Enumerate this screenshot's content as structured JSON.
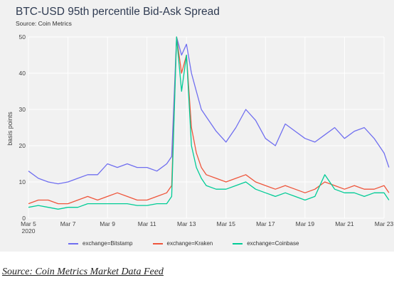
{
  "chart_data": {
    "type": "line",
    "title": "BTC-USD 95th percentile Bid-Ask Spread",
    "subtitle": "Source: Coin Metrics",
    "ylabel": "basis points",
    "xlabel": "",
    "ylim": [
      0,
      50
    ],
    "yticks": [
      "0",
      "10",
      "20",
      "30",
      "40",
      "50"
    ],
    "xticks": [
      {
        "date": "2020-03-05",
        "label": "Mar 5",
        "sublabel": "2020"
      },
      {
        "date": "2020-03-07",
        "label": "Mar 7"
      },
      {
        "date": "2020-03-09",
        "label": "Mar 9"
      },
      {
        "date": "2020-03-11",
        "label": "Mar 11"
      },
      {
        "date": "2020-03-13",
        "label": "Mar 13"
      },
      {
        "date": "2020-03-15",
        "label": "Mar 15"
      },
      {
        "date": "2020-03-17",
        "label": "Mar 17"
      },
      {
        "date": "2020-03-19",
        "label": "Mar 19"
      },
      {
        "date": "2020-03-21",
        "label": "Mar 21"
      },
      {
        "date": "2020-03-23",
        "label": "Mar 23"
      }
    ],
    "grid": true,
    "legend_position": "bottom",
    "series": [
      {
        "name": "exchange=Bitstamp",
        "color": "#6f6ef0",
        "points": [
          [
            "2020-03-05 00:00",
            13
          ],
          [
            "2020-03-05 12:00",
            11
          ],
          [
            "2020-03-06 00:00",
            10
          ],
          [
            "2020-03-06 12:00",
            9.5
          ],
          [
            "2020-03-07 00:00",
            10
          ],
          [
            "2020-03-07 12:00",
            11
          ],
          [
            "2020-03-08 00:00",
            12
          ],
          [
            "2020-03-08 12:00",
            12
          ],
          [
            "2020-03-09 00:00",
            15
          ],
          [
            "2020-03-09 12:00",
            14
          ],
          [
            "2020-03-10 00:00",
            15
          ],
          [
            "2020-03-10 12:00",
            14
          ],
          [
            "2020-03-11 00:00",
            14
          ],
          [
            "2020-03-11 12:00",
            13
          ],
          [
            "2020-03-12 00:00",
            15
          ],
          [
            "2020-03-12 06:00",
            17
          ],
          [
            "2020-03-12 12:00",
            50
          ],
          [
            "2020-03-12 18:00",
            45
          ],
          [
            "2020-03-13 00:00",
            48
          ],
          [
            "2020-03-13 06:00",
            40
          ],
          [
            "2020-03-13 12:00",
            35
          ],
          [
            "2020-03-13 18:00",
            30
          ],
          [
            "2020-03-14 00:00",
            28
          ],
          [
            "2020-03-14 12:00",
            24
          ],
          [
            "2020-03-15 00:00",
            21
          ],
          [
            "2020-03-15 12:00",
            25
          ],
          [
            "2020-03-16 00:00",
            30
          ],
          [
            "2020-03-16 12:00",
            27
          ],
          [
            "2020-03-17 00:00",
            22
          ],
          [
            "2020-03-17 12:00",
            20
          ],
          [
            "2020-03-18 00:00",
            26
          ],
          [
            "2020-03-18 12:00",
            24
          ],
          [
            "2020-03-19 00:00",
            22
          ],
          [
            "2020-03-19 12:00",
            21
          ],
          [
            "2020-03-20 00:00",
            23
          ],
          [
            "2020-03-20 12:00",
            25
          ],
          [
            "2020-03-21 00:00",
            22
          ],
          [
            "2020-03-21 12:00",
            24
          ],
          [
            "2020-03-22 00:00",
            25
          ],
          [
            "2020-03-22 12:00",
            22
          ],
          [
            "2020-03-23 00:00",
            18
          ],
          [
            "2020-03-23 06:00",
            14
          ]
        ]
      },
      {
        "name": "exchange=Kraken",
        "color": "#ef553b",
        "points": [
          [
            "2020-03-05 00:00",
            4
          ],
          [
            "2020-03-05 12:00",
            5
          ],
          [
            "2020-03-06 00:00",
            5
          ],
          [
            "2020-03-06 12:00",
            4
          ],
          [
            "2020-03-07 00:00",
            4
          ],
          [
            "2020-03-07 12:00",
            5
          ],
          [
            "2020-03-08 00:00",
            6
          ],
          [
            "2020-03-08 12:00",
            5
          ],
          [
            "2020-03-09 00:00",
            6
          ],
          [
            "2020-03-09 12:00",
            7
          ],
          [
            "2020-03-10 00:00",
            6
          ],
          [
            "2020-03-10 12:00",
            5
          ],
          [
            "2020-03-11 00:00",
            5
          ],
          [
            "2020-03-11 12:00",
            6
          ],
          [
            "2020-03-12 00:00",
            7
          ],
          [
            "2020-03-12 06:00",
            9
          ],
          [
            "2020-03-12 12:00",
            50
          ],
          [
            "2020-03-12 18:00",
            40
          ],
          [
            "2020-03-13 00:00",
            45
          ],
          [
            "2020-03-13 06:00",
            25
          ],
          [
            "2020-03-13 12:00",
            18
          ],
          [
            "2020-03-13 18:00",
            14
          ],
          [
            "2020-03-14 00:00",
            12
          ],
          [
            "2020-03-14 12:00",
            11
          ],
          [
            "2020-03-15 00:00",
            10
          ],
          [
            "2020-03-15 12:00",
            11
          ],
          [
            "2020-03-16 00:00",
            12
          ],
          [
            "2020-03-16 12:00",
            10
          ],
          [
            "2020-03-17 00:00",
            9
          ],
          [
            "2020-03-17 12:00",
            8
          ],
          [
            "2020-03-18 00:00",
            9
          ],
          [
            "2020-03-18 12:00",
            8
          ],
          [
            "2020-03-19 00:00",
            7
          ],
          [
            "2020-03-19 12:00",
            8
          ],
          [
            "2020-03-20 00:00",
            10
          ],
          [
            "2020-03-20 12:00",
            9
          ],
          [
            "2020-03-21 00:00",
            8
          ],
          [
            "2020-03-21 12:00",
            9
          ],
          [
            "2020-03-22 00:00",
            8
          ],
          [
            "2020-03-22 12:00",
            8
          ],
          [
            "2020-03-23 00:00",
            9
          ],
          [
            "2020-03-23 06:00",
            7
          ]
        ]
      },
      {
        "name": "exchange=Coinbase",
        "color": "#00cc96",
        "points": [
          [
            "2020-03-05 00:00",
            3
          ],
          [
            "2020-03-05 12:00",
            3.5
          ],
          [
            "2020-03-06 00:00",
            3
          ],
          [
            "2020-03-06 12:00",
            2.5
          ],
          [
            "2020-03-07 00:00",
            3
          ],
          [
            "2020-03-07 12:00",
            3
          ],
          [
            "2020-03-08 00:00",
            4
          ],
          [
            "2020-03-08 12:00",
            4
          ],
          [
            "2020-03-09 00:00",
            4
          ],
          [
            "2020-03-09 12:00",
            4
          ],
          [
            "2020-03-10 00:00",
            4
          ],
          [
            "2020-03-10 12:00",
            3.5
          ],
          [
            "2020-03-11 00:00",
            3.5
          ],
          [
            "2020-03-11 12:00",
            4
          ],
          [
            "2020-03-12 00:00",
            4
          ],
          [
            "2020-03-12 06:00",
            6
          ],
          [
            "2020-03-12 12:00",
            50
          ],
          [
            "2020-03-12 18:00",
            35
          ],
          [
            "2020-03-13 00:00",
            45
          ],
          [
            "2020-03-13 06:00",
            20
          ],
          [
            "2020-03-13 12:00",
            14
          ],
          [
            "2020-03-13 18:00",
            11
          ],
          [
            "2020-03-14 00:00",
            9
          ],
          [
            "2020-03-14 12:00",
            8
          ],
          [
            "2020-03-15 00:00",
            8
          ],
          [
            "2020-03-15 12:00",
            9
          ],
          [
            "2020-03-16 00:00",
            10
          ],
          [
            "2020-03-16 12:00",
            8
          ],
          [
            "2020-03-17 00:00",
            7
          ],
          [
            "2020-03-17 12:00",
            6
          ],
          [
            "2020-03-18 00:00",
            7
          ],
          [
            "2020-03-18 12:00",
            6
          ],
          [
            "2020-03-19 00:00",
            5
          ],
          [
            "2020-03-19 12:00",
            6
          ],
          [
            "2020-03-20 00:00",
            12
          ],
          [
            "2020-03-20 12:00",
            8
          ],
          [
            "2020-03-21 00:00",
            7
          ],
          [
            "2020-03-21 12:00",
            7
          ],
          [
            "2020-03-22 00:00",
            6
          ],
          [
            "2020-03-22 12:00",
            7
          ],
          [
            "2020-03-23 00:00",
            7
          ],
          [
            "2020-03-23 06:00",
            5
          ]
        ]
      }
    ]
  },
  "source_link": "Source: Coin Metrics Market Data Feed"
}
